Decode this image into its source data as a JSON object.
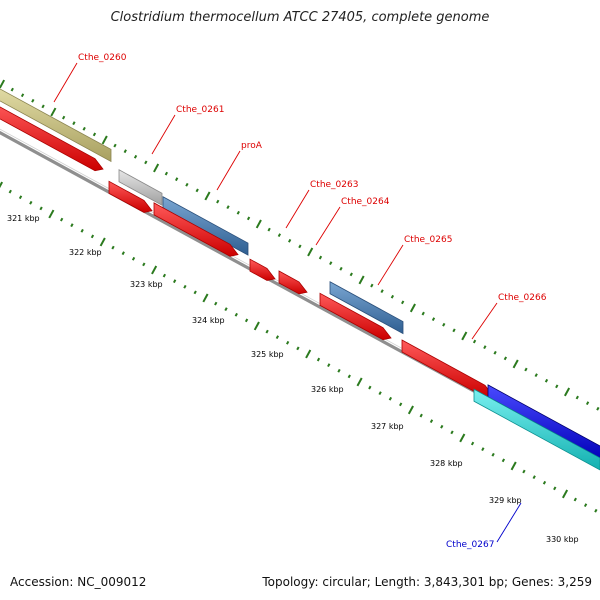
{
  "title": "Clostridium thermocellum ATCC 27405, complete genome",
  "footer": {
    "accession": "Accession: NC_009012",
    "topology": "Topology: circular; Length: 3,843,301 bp; Genes: 3,259"
  },
  "colors": {
    "backbone": "#8f8f8f",
    "cds_red": "#ff1a1a",
    "ticks": "#2b7a1e",
    "label_red": "#dd0000",
    "label_blue": "#0000cc",
    "olive": "#c8c07a",
    "grey": "#c8c8c8",
    "steelblue": "#4a7fb5",
    "blue": "#0000ee",
    "cyan": "#1fd6d6"
  },
  "ticks": [
    {
      "label": "321 kbp"
    },
    {
      "label": "322 kbp"
    },
    {
      "label": "323 kbp"
    },
    {
      "label": "324 kbp"
    },
    {
      "label": "325 kbp"
    },
    {
      "label": "326 kbp"
    },
    {
      "label": "327 kbp"
    },
    {
      "label": "328 kbp"
    },
    {
      "label": "329 kbp"
    },
    {
      "label": "330 kbp"
    }
  ],
  "gene_labels": [
    {
      "text": "Cthe_0260",
      "color": "red"
    },
    {
      "text": "Cthe_0261",
      "color": "red"
    },
    {
      "text": "proA",
      "color": "red"
    },
    {
      "text": "Cthe_0263",
      "color": "red"
    },
    {
      "text": "Cthe_0264",
      "color": "red"
    },
    {
      "text": "Cthe_0265",
      "color": "red"
    },
    {
      "text": "Cthe_0266",
      "color": "red"
    },
    {
      "text": "Cthe_0267",
      "color": "blue"
    }
  ]
}
